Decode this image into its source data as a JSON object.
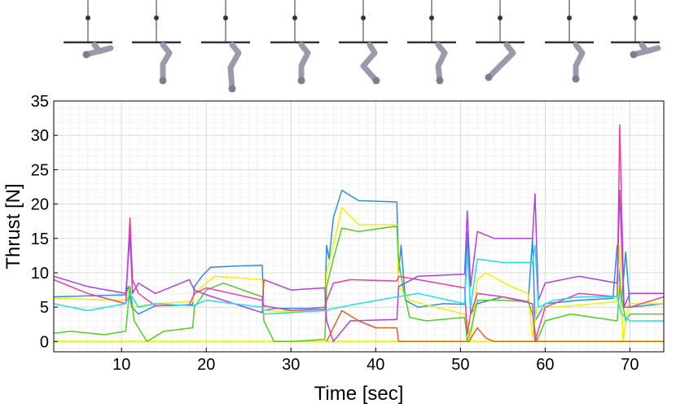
{
  "chart_data": {
    "type": "line",
    "xlabel": "Time [sec]",
    "ylabel": "Thrust [N]",
    "xlim": [
      2,
      74
    ],
    "ylim": [
      -1.5,
      35
    ],
    "xticks": [
      10,
      20,
      30,
      40,
      50,
      60,
      70
    ],
    "yticks": [
      0,
      5,
      10,
      15,
      20,
      25,
      30,
      35
    ],
    "grid": "major and minor",
    "pose_thumbnails": 9,
    "series": [
      {
        "color": "#2b8fe0",
        "points": [
          [
            2,
            6.5
          ],
          [
            10.5,
            6.8
          ],
          [
            10.8,
            8
          ],
          [
            11.2,
            5
          ],
          [
            12,
            4
          ],
          [
            14,
            5.2
          ],
          [
            17,
            5.3
          ],
          [
            18.4,
            5.4
          ],
          [
            18.6,
            8
          ],
          [
            19.5,
            9.5
          ],
          [
            20.5,
            10.8
          ],
          [
            24,
            11
          ],
          [
            26.6,
            11.1
          ],
          [
            26.8,
            4.5
          ],
          [
            28,
            4.8
          ],
          [
            32,
            4.8
          ],
          [
            34,
            5
          ],
          [
            34.2,
            14
          ],
          [
            34.5,
            12
          ],
          [
            35,
            18
          ],
          [
            36,
            22
          ],
          [
            38,
            20.5
          ],
          [
            42.5,
            20.3
          ],
          [
            42.7,
            10
          ],
          [
            43,
            14
          ],
          [
            43.5,
            6
          ],
          [
            45,
            5
          ],
          [
            48,
            5.5
          ],
          [
            50.5,
            5.4
          ],
          [
            50.8,
            16
          ],
          [
            51.2,
            4
          ],
          [
            52,
            5.5
          ],
          [
            55,
            6.5
          ],
          [
            58,
            5.8
          ],
          [
            58.5,
            15
          ],
          [
            58.8,
            3
          ],
          [
            60,
            5.5
          ],
          [
            64,
            6
          ],
          [
            68,
            6.3
          ],
          [
            68.5,
            14
          ],
          [
            69,
            5.5
          ],
          [
            69.5,
            13
          ],
          [
            70,
            5
          ],
          [
            74,
            5.5
          ]
        ]
      },
      {
        "color": "#f0f000",
        "points": [
          [
            2,
            6.3
          ],
          [
            10.5,
            6
          ],
          [
            11,
            8
          ],
          [
            11.3,
            5
          ],
          [
            14,
            5.5
          ],
          [
            18.4,
            5.8
          ],
          [
            18.6,
            7
          ],
          [
            20,
            8.5
          ],
          [
            21,
            9.5
          ],
          [
            26.6,
            9
          ],
          [
            26.8,
            4.5
          ],
          [
            30,
            4.3
          ],
          [
            34,
            4.5
          ],
          [
            34.2,
            10
          ],
          [
            35,
            14
          ],
          [
            36,
            19.5
          ],
          [
            38,
            17
          ],
          [
            42.5,
            17
          ],
          [
            42.7,
            8
          ],
          [
            44,
            6
          ],
          [
            47,
            5
          ],
          [
            50.5,
            4
          ],
          [
            50.8,
            3
          ],
          [
            51.2,
            0
          ],
          [
            52,
            9
          ],
          [
            53,
            10
          ],
          [
            56,
            8
          ],
          [
            58,
            7
          ],
          [
            58.5,
            0.5
          ],
          [
            59,
            5
          ],
          [
            61,
            5
          ],
          [
            66,
            5.5
          ],
          [
            68.5,
            5.8
          ],
          [
            68.8,
            14
          ],
          [
            69.2,
            0
          ],
          [
            69.8,
            5.5
          ],
          [
            74,
            5.5
          ],
          [
            74,
            0
          ],
          [
            2,
            0
          ]
        ],
        "open": true
      },
      {
        "color": "#55cc22",
        "points": [
          [
            2,
            1.2
          ],
          [
            4,
            1.5
          ],
          [
            8,
            1
          ],
          [
            10.5,
            1.5
          ],
          [
            11,
            8
          ],
          [
            11.5,
            3
          ],
          [
            13,
            0
          ],
          [
            15,
            1.5
          ],
          [
            18.4,
            2
          ],
          [
            18.6,
            5
          ],
          [
            20,
            7.5
          ],
          [
            22,
            8.5
          ],
          [
            26.6,
            6.5
          ],
          [
            26.8,
            3
          ],
          [
            28,
            0
          ],
          [
            30,
            0
          ],
          [
            34,
            0.3
          ],
          [
            34.2,
            8
          ],
          [
            35,
            12
          ],
          [
            36,
            16.5
          ],
          [
            38,
            16
          ],
          [
            42.5,
            16.8
          ],
          [
            42.7,
            12
          ],
          [
            43.2,
            8
          ],
          [
            44,
            3.5
          ],
          [
            46,
            3
          ],
          [
            50.5,
            3.5
          ],
          [
            50.8,
            0
          ],
          [
            51.3,
            2
          ],
          [
            52,
            6
          ],
          [
            55,
            6
          ],
          [
            58,
            5.8
          ],
          [
            58.5,
            4
          ],
          [
            59,
            0
          ],
          [
            60,
            3
          ],
          [
            63,
            4
          ],
          [
            68.5,
            3
          ],
          [
            68.8,
            8
          ],
          [
            69.5,
            3
          ],
          [
            70,
            4
          ],
          [
            74,
            4
          ]
        ]
      },
      {
        "color": "#f03ca0",
        "points": [
          [
            2,
            9
          ],
          [
            6,
            7
          ],
          [
            10.5,
            5.5
          ],
          [
            11,
            18
          ],
          [
            11.3,
            9
          ],
          [
            12,
            7
          ],
          [
            14,
            5.2
          ],
          [
            18,
            5.3
          ],
          [
            18.6,
            7
          ],
          [
            20,
            7.8
          ],
          [
            26.6,
            6
          ],
          [
            26.8,
            5.2
          ],
          [
            30,
            4.5
          ],
          [
            34,
            4.7
          ],
          [
            34.2,
            6
          ],
          [
            35,
            8.5
          ],
          [
            37,
            9
          ],
          [
            42.5,
            8.8
          ],
          [
            42.7,
            9.5
          ],
          [
            45,
            9
          ],
          [
            50.5,
            7.8
          ],
          [
            50.8,
            1
          ],
          [
            51.2,
            4
          ],
          [
            52,
            7
          ],
          [
            55,
            6.5
          ],
          [
            58.5,
            5.5
          ],
          [
            58.8,
            0
          ],
          [
            60,
            5
          ],
          [
            64,
            7
          ],
          [
            68.5,
            6.5
          ],
          [
            68.8,
            31.5
          ],
          [
            69.3,
            5
          ],
          [
            70,
            5
          ],
          [
            74,
            6.5
          ]
        ]
      },
      {
        "color": "#b040e0",
        "points": [
          [
            2,
            9.5
          ],
          [
            6,
            8
          ],
          [
            10.5,
            7
          ],
          [
            11,
            15.5
          ],
          [
            11.3,
            7
          ],
          [
            12,
            8.5
          ],
          [
            14,
            7
          ],
          [
            18,
            9
          ],
          [
            18.6,
            7.5
          ],
          [
            20,
            6.8
          ],
          [
            26.6,
            4.2
          ],
          [
            26.8,
            9
          ],
          [
            30,
            7.5
          ],
          [
            34,
            7.8
          ],
          [
            34.2,
            3
          ],
          [
            35,
            0
          ],
          [
            37,
            3
          ],
          [
            42.5,
            3.2
          ],
          [
            42.7,
            8
          ],
          [
            45,
            9.5
          ],
          [
            50.5,
            9.8
          ],
          [
            50.8,
            19
          ],
          [
            51.2,
            8
          ],
          [
            52,
            16
          ],
          [
            54,
            15
          ],
          [
            58.5,
            15
          ],
          [
            58.8,
            21.5
          ],
          [
            59.2,
            6
          ],
          [
            60,
            8.5
          ],
          [
            64,
            9.5
          ],
          [
            68.5,
            8.5
          ],
          [
            68.8,
            22
          ],
          [
            69.3,
            5
          ],
          [
            70,
            7
          ],
          [
            74,
            7
          ]
        ]
      },
      {
        "color": "#e06030",
        "points": [
          [
            34.2,
            0
          ],
          [
            35,
            2
          ],
          [
            36,
            4.5
          ],
          [
            38,
            3
          ],
          [
            40,
            2
          ],
          [
            42.5,
            2
          ],
          [
            42.7,
            0
          ],
          [
            51,
            0
          ],
          [
            52,
            2
          ],
          [
            53,
            0.5
          ],
          [
            54,
            0
          ],
          [
            74,
            0
          ]
        ]
      },
      {
        "color": "#20e0f0",
        "points": [
          [
            2,
            5.5
          ],
          [
            6,
            4.5
          ],
          [
            10.5,
            5.5
          ],
          [
            11,
            7
          ],
          [
            12,
            5
          ],
          [
            14,
            5.5
          ],
          [
            18.4,
            5.2
          ],
          [
            20,
            6
          ],
          [
            26.6,
            5
          ],
          [
            26.8,
            4
          ],
          [
            30,
            4.2
          ],
          [
            34,
            4.5
          ],
          [
            35,
            4.8
          ],
          [
            38,
            5.5
          ],
          [
            42.5,
            6.5
          ],
          [
            45,
            7
          ],
          [
            50.5,
            5.5
          ],
          [
            50.8,
            13
          ],
          [
            51.2,
            5
          ],
          [
            52,
            12
          ],
          [
            55,
            11.5
          ],
          [
            58.5,
            11.5
          ],
          [
            58.8,
            14
          ],
          [
            59.2,
            5
          ],
          [
            61,
            6
          ],
          [
            64,
            6.5
          ],
          [
            68.5,
            6.5
          ],
          [
            69,
            4
          ],
          [
            70,
            3
          ],
          [
            74,
            3
          ]
        ]
      }
    ]
  }
}
